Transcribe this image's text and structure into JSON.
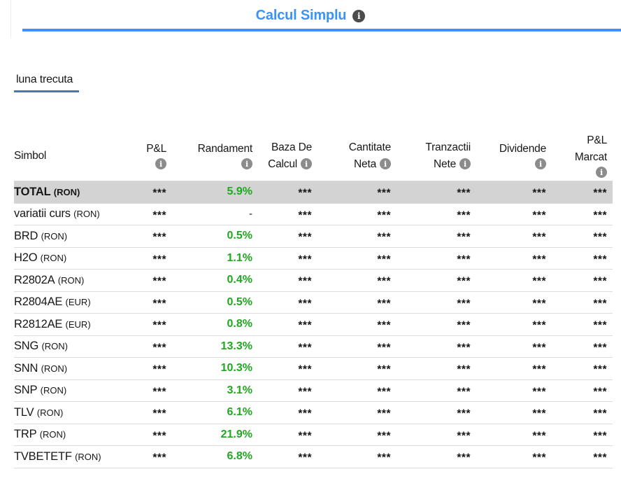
{
  "colors": {
    "accent_blue": "#3b93f5",
    "tab_underline": "#4c79ad",
    "green": "#20a820",
    "highlight_bg": "#d3d3d3",
    "icon_gray": "#8c8c8c",
    "icon_dark": "#4c4c4c"
  },
  "header": {
    "title": "Calcul Simplu"
  },
  "tabs": {
    "active_label": "luna trecuta"
  },
  "table": {
    "value_keys": [
      "pl",
      "randament",
      "baza",
      "cantitate",
      "tranzactii",
      "dividende",
      "pl_marcat"
    ],
    "columns": [
      {
        "id": "simbol",
        "lines": [
          "Simbol"
        ],
        "info": "none"
      },
      {
        "id": "pl",
        "lines": [
          "P&L"
        ],
        "info": "below"
      },
      {
        "id": "randament",
        "lines": [
          "Randament"
        ],
        "info": "below"
      },
      {
        "id": "baza",
        "lines": [
          "Baza De",
          "Calcul"
        ],
        "info": "inline"
      },
      {
        "id": "cantitate",
        "lines": [
          "Cantitate",
          "Neta"
        ],
        "info": "inline"
      },
      {
        "id": "tranzactii",
        "lines": [
          "Tranzactii",
          "Nete"
        ],
        "info": "inline"
      },
      {
        "id": "dividende",
        "lines": [
          "Dividende"
        ],
        "info": "below"
      },
      {
        "id": "pl_marcat",
        "lines": [
          "P&L",
          "Marcat"
        ],
        "info": "below"
      }
    ],
    "rows": [
      {
        "symbol": "TOTAL",
        "currency": "(RON)",
        "highlight": true,
        "bold": true,
        "pl": "***",
        "randament": "5.9%",
        "baza": "***",
        "cantitate": "***",
        "tranzactii": "***",
        "dividende": "***",
        "pl_marcat": "***"
      },
      {
        "symbol": "variatii curs",
        "currency": "(RON)",
        "highlight": false,
        "bold": false,
        "pl": "***",
        "randament": "-",
        "baza": "***",
        "cantitate": "***",
        "tranzactii": "***",
        "dividende": "***",
        "pl_marcat": "***"
      },
      {
        "symbol": "BRD",
        "currency": "(RON)",
        "highlight": false,
        "bold": false,
        "pl": "***",
        "randament": "0.5%",
        "baza": "***",
        "cantitate": "***",
        "tranzactii": "***",
        "dividende": "***",
        "pl_marcat": "***"
      },
      {
        "symbol": "H2O",
        "currency": "(RON)",
        "highlight": false,
        "bold": false,
        "pl": "***",
        "randament": "1.1%",
        "baza": "***",
        "cantitate": "***",
        "tranzactii": "***",
        "dividende": "***",
        "pl_marcat": "***"
      },
      {
        "symbol": "R2802A",
        "currency": "(RON)",
        "highlight": false,
        "bold": false,
        "pl": "***",
        "randament": "0.4%",
        "baza": "***",
        "cantitate": "***",
        "tranzactii": "***",
        "dividende": "***",
        "pl_marcat": "***"
      },
      {
        "symbol": "R2804AE",
        "currency": "(EUR)",
        "highlight": false,
        "bold": false,
        "pl": "***",
        "randament": "0.5%",
        "baza": "***",
        "cantitate": "***",
        "tranzactii": "***",
        "dividende": "***",
        "pl_marcat": "***"
      },
      {
        "symbol": "R2812AE",
        "currency": "(EUR)",
        "highlight": false,
        "bold": false,
        "pl": "***",
        "randament": "0.8%",
        "baza": "***",
        "cantitate": "***",
        "tranzactii": "***",
        "dividende": "***",
        "pl_marcat": "***"
      },
      {
        "symbol": "SNG",
        "currency": "(RON)",
        "highlight": false,
        "bold": false,
        "pl": "***",
        "randament": "13.3%",
        "baza": "***",
        "cantitate": "***",
        "tranzactii": "***",
        "dividende": "***",
        "pl_marcat": "***"
      },
      {
        "symbol": "SNN",
        "currency": "(RON)",
        "highlight": false,
        "bold": false,
        "pl": "***",
        "randament": "10.3%",
        "baza": "***",
        "cantitate": "***",
        "tranzactii": "***",
        "dividende": "***",
        "pl_marcat": "***"
      },
      {
        "symbol": "SNP",
        "currency": "(RON)",
        "highlight": false,
        "bold": false,
        "pl": "***",
        "randament": "3.1%",
        "baza": "***",
        "cantitate": "***",
        "tranzactii": "***",
        "dividende": "***",
        "pl_marcat": "***"
      },
      {
        "symbol": "TLV",
        "currency": "(RON)",
        "highlight": false,
        "bold": false,
        "pl": "***",
        "randament": "6.1%",
        "baza": "***",
        "cantitate": "***",
        "tranzactii": "***",
        "dividende": "***",
        "pl_marcat": "***"
      },
      {
        "symbol": "TRP",
        "currency": "(RON)",
        "highlight": false,
        "bold": false,
        "pl": "***",
        "randament": "21.9%",
        "baza": "***",
        "cantitate": "***",
        "tranzactii": "***",
        "dividende": "***",
        "pl_marcat": "***"
      },
      {
        "symbol": "TVBETETF",
        "currency": "(RON)",
        "highlight": false,
        "bold": false,
        "pl": "***",
        "randament": "6.8%",
        "baza": "***",
        "cantitate": "***",
        "tranzactii": "***",
        "dividende": "***",
        "pl_marcat": "***"
      }
    ]
  }
}
